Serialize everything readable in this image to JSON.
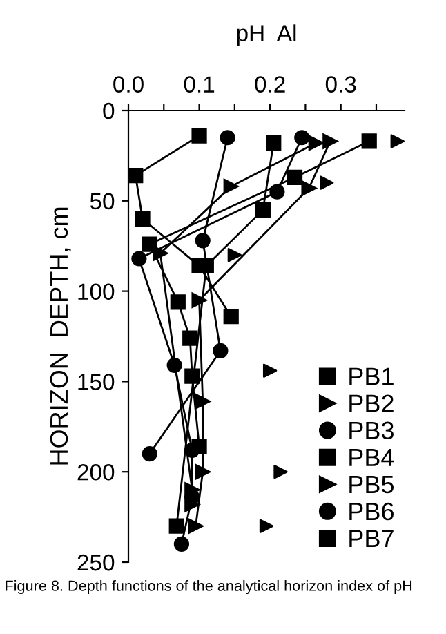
{
  "chart_data": {
    "type": "line",
    "xlabel": "pH  Al",
    "ylabel": "HORIZON  DEPTH, cm",
    "annotations": [
      "Figure 8. Depth functions of the analytical horizon index of pH"
    ],
    "xlim": [
      0,
      0.39
    ],
    "ylim": [
      250,
      0
    ],
    "xticks": [
      {
        "value": 0.0,
        "label": "0.0"
      },
      {
        "value": 0.05,
        "label": null
      },
      0.1,
      {
        "value": 0.15,
        "label": null
      },
      0.2,
      {
        "value": 0.25,
        "label": null
      },
      0.3,
      {
        "value": 0.35,
        "label": null
      }
    ],
    "yticks": [
      0,
      50,
      100,
      150,
      200,
      250
    ],
    "grid": false,
    "legend": "bottom right",
    "line_style": "solid",
    "series": [
      {
        "name": "PB1",
        "color": "#000000",
        "marker": "square",
        "x": [
          0.1,
          0.01,
          0.02,
          0.1,
          0.145
        ],
        "values": [
          14,
          36,
          60,
          86,
          114
        ]
      },
      {
        "name": "PB2",
        "color": "#000000",
        "marker": "triangle",
        "x": [
          0.265,
          0.145,
          0.045,
          0.09,
          0.09
        ],
        "values": [
          18,
          42,
          79,
          210,
          218
        ]
      },
      {
        "name": "PB3",
        "color": "#000000",
        "marker": "circle",
        "x": [
          0.14,
          0.105,
          0.13,
          0.03
        ],
        "values": [
          15,
          72,
          133,
          190
        ]
      },
      {
        "name": "PB4",
        "color": "#000000",
        "marker": "square",
        "x": [
          0.34,
          0.235,
          0.03,
          0.07,
          0.087,
          0.09,
          0.1
        ],
        "values": [
          17,
          37,
          74,
          106,
          126,
          147,
          186
        ]
      },
      {
        "name": "PB5",
        "color": "#000000",
        "marker": "triangle",
        "x": [
          0.285,
          0.255,
          0.1,
          0.105,
          0.105,
          0.095
        ],
        "values": [
          17,
          43,
          105,
          161,
          200,
          230
        ]
      },
      {
        "name": "PB6",
        "color": "#000000",
        "marker": "circle",
        "x": [
          0.245,
          0.21,
          0.015,
          0.065,
          0.09,
          0.09,
          0.075
        ],
        "values": [
          15,
          45,
          82,
          141,
          188,
          214,
          240
        ]
      },
      {
        "name": "PB7",
        "color": "#000000",
        "marker": "square",
        "x": [
          0.205,
          0.19,
          0.11,
          0.068
        ],
        "values": [
          18,
          55,
          86,
          230
        ]
      },
      {
        "type": "scatter",
        "color": "#000000",
        "marker": "triangle",
        "x": [
          0.38,
          0.28,
          0.15,
          0.2,
          0.215,
          0.195
        ],
        "values": [
          17,
          40,
          80,
          144,
          200,
          230
        ]
      }
    ]
  }
}
